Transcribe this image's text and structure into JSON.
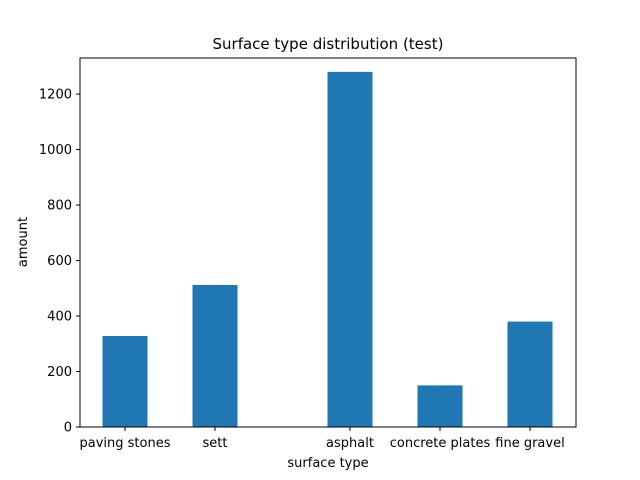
{
  "chart_data": {
    "type": "bar",
    "title": "Surface type distribution (test)",
    "xlabel": "surface type",
    "ylabel": "amount",
    "categories": [
      "paving stones",
      "sett",
      "asphalt",
      "concrete plates",
      "fine gravel"
    ],
    "values": [
      328,
      512,
      1280,
      150,
      380
    ],
    "ylim": [
      0,
      1330
    ],
    "yticks": [
      0,
      200,
      400,
      600,
      800,
      1000,
      1200
    ],
    "bar_color": "#1f77b4",
    "grid": false,
    "legend": false
  }
}
